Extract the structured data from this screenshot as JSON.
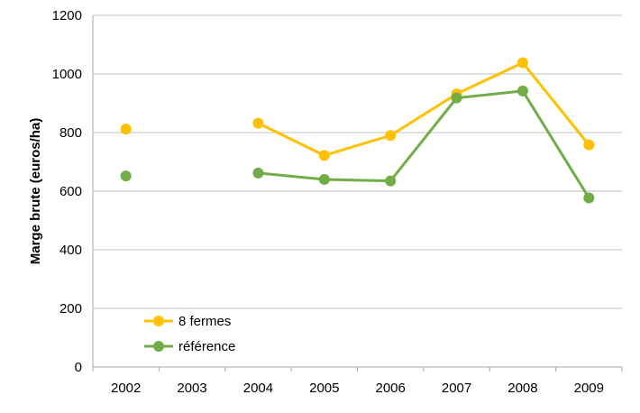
{
  "chart_data": {
    "type": "line",
    "ylabel": "Marge brute (euros/ha)",
    "categories": [
      "2002",
      "2003",
      "2004",
      "2005",
      "2006",
      "2007",
      "2008",
      "2009"
    ],
    "ylim": [
      0,
      1200
    ],
    "yticks": [
      0,
      200,
      400,
      600,
      800,
      1000,
      1200
    ],
    "grid": true,
    "legend_position": "bottom-left",
    "series": [
      {
        "name": "8 fermes",
        "color": "#FFC000",
        "values": [
          812,
          null,
          832,
          722,
          790,
          932,
          1038,
          758
        ]
      },
      {
        "name": "référence",
        "color": "#70AD47",
        "values": [
          652,
          null,
          662,
          640,
          635,
          918,
          942,
          577
        ]
      }
    ]
  }
}
